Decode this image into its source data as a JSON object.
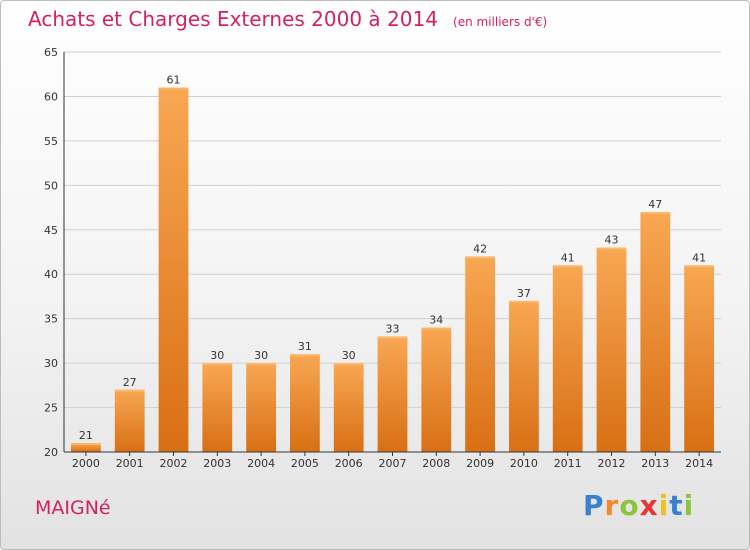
{
  "chart_data": {
    "type": "bar",
    "title": "Achats et Charges Externes 2000 à 2014",
    "subtitle": "(en milliers d'€)",
    "categories": [
      "2000",
      "2001",
      "2002",
      "2003",
      "2004",
      "2005",
      "2006",
      "2007",
      "2008",
      "2009",
      "2010",
      "2011",
      "2012",
      "2013",
      "2014"
    ],
    "values": [
      21,
      27,
      61,
      30,
      30,
      31,
      30,
      33,
      34,
      42,
      37,
      41,
      43,
      47,
      41
    ],
    "ylim": [
      20,
      65
    ],
    "yticks": [
      20,
      25,
      30,
      35,
      40,
      45,
      50,
      55,
      60,
      65
    ],
    "grid": true,
    "bar_color": "#f08a2c"
  },
  "commune": "MAIGNé",
  "logo": {
    "letters": [
      "P",
      "r",
      "o",
      "x",
      "i",
      "t",
      "i"
    ],
    "colors": [
      "#3a7fd0",
      "#f08a2c",
      "#8bc43f",
      "#e53535",
      "#f0c020",
      "#3a7fd0",
      "#8bc43f"
    ]
  }
}
